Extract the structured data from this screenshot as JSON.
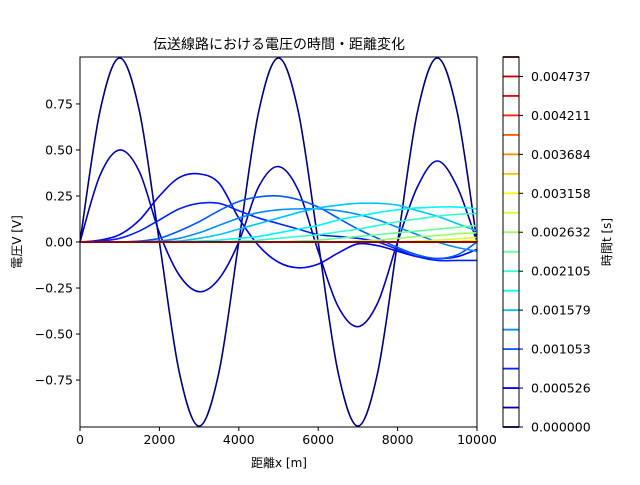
{
  "chart_data": {
    "type": "line",
    "title": "伝送線路における電圧の時間・距離変化",
    "xlabel": "距離x [m]",
    "ylabel": "電圧V [V]",
    "xlim": [
      0,
      10000
    ],
    "ylim": [
      -1.005,
      1.005
    ],
    "xticks": [
      0,
      2000,
      4000,
      6000,
      8000,
      10000
    ],
    "yticks": [
      -0.75,
      -0.5,
      -0.25,
      0.0,
      0.25,
      0.5,
      0.75
    ],
    "ytick_labels": [
      "−0.75",
      "−0.50",
      "−0.25",
      "0.00",
      "0.25",
      "0.50",
      "0.75"
    ],
    "grid": false,
    "colormap": "jet",
    "colorbar": {
      "label": "時間t [s]",
      "range": [
        0,
        0.005
      ],
      "levels": 20,
      "tick_labels": [
        "0.000000",
        "0.000526",
        "0.001053",
        "0.001579",
        "0.002105",
        "0.002632",
        "0.003158",
        "0.003684",
        "0.004211",
        "0.004737"
      ]
    },
    "x": [
      0,
      500,
      1000,
      1500,
      2000,
      2500,
      3000,
      3500,
      4000,
      4500,
      5000,
      5500,
      6000,
      6500,
      7000,
      7500,
      8000,
      8500,
      9000,
      9500,
      10000
    ],
    "series": [
      {
        "t": 0.0,
        "y": [
          0,
          0.707,
          1,
          0.707,
          0,
          -0.707,
          -1,
          -0.707,
          0,
          0.707,
          1,
          0.707,
          0,
          -0.707,
          -1,
          -0.707,
          0,
          0.707,
          1,
          0.707,
          0
        ]
      },
      {
        "t": 0.000263,
        "y": [
          0,
          0.36,
          0.5,
          0.38,
          0.05,
          -0.18,
          -0.27,
          -0.2,
          0.0,
          0.3,
          0.41,
          0.28,
          -0.05,
          -0.35,
          -0.46,
          -0.33,
          0.0,
          0.3,
          0.44,
          0.3,
          0.0
        ]
      },
      {
        "t": 0.000526,
        "y": [
          0,
          0.01,
          0.04,
          0.12,
          0.25,
          0.35,
          0.37,
          0.32,
          0.13,
          -0.02,
          -0.11,
          -0.14,
          -0.12,
          -0.06,
          -0.01,
          -0.02,
          -0.05,
          -0.08,
          -0.09,
          -0.08,
          -0.04
        ]
      },
      {
        "t": 0.000789,
        "y": [
          0,
          0.005,
          0.02,
          0.06,
          0.12,
          0.18,
          0.21,
          0.21,
          0.17,
          0.13,
          0.1,
          0.07,
          0.04,
          0.03,
          0.02,
          0.0,
          -0.04,
          -0.08,
          -0.1,
          -0.1,
          -0.1
        ]
      },
      {
        "t": 0.001053,
        "y": [
          0,
          0,
          0,
          0.005,
          0.02,
          0.06,
          0.11,
          0.17,
          0.22,
          0.245,
          0.25,
          0.23,
          0.19,
          0.13,
          0.07,
          0.02,
          -0.03,
          -0.07,
          -0.09,
          -0.07,
          0.0
        ]
      },
      {
        "t": 0.001316,
        "y": [
          0,
          0,
          0,
          0,
          0.005,
          0.02,
          0.05,
          0.09,
          0.13,
          0.16,
          0.175,
          0.18,
          0.18,
          0.17,
          0.15,
          0.12,
          0.08,
          0.04,
          0.0,
          -0.03,
          -0.05
        ]
      },
      {
        "t": 0.001579,
        "y": [
          0,
          0,
          0,
          0,
          0,
          0.005,
          0.02,
          0.04,
          0.07,
          0.1,
          0.13,
          0.16,
          0.185,
          0.2,
          0.21,
          0.21,
          0.2,
          0.17,
          0.14,
          0.1,
          0.06
        ]
      },
      {
        "t": 0.001842,
        "y": [
          0,
          0,
          0,
          0,
          0,
          0,
          0.005,
          0.01,
          0.02,
          0.03,
          0.05,
          0.07,
          0.09,
          0.12,
          0.14,
          0.16,
          0.175,
          0.185,
          0.19,
          0.19,
          0.18
        ]
      },
      {
        "t": 0.002105,
        "y": [
          0,
          0,
          0,
          0,
          0,
          0,
          0,
          0,
          0.005,
          0.01,
          0.02,
          0.03,
          0.04,
          0.055,
          0.07,
          0.09,
          0.11,
          0.125,
          0.14,
          0.15,
          0.155
        ]
      },
      {
        "t": 0.002368,
        "y": [
          0,
          0,
          0,
          0,
          0,
          0,
          0,
          0,
          0,
          0,
          0,
          0.005,
          0.01,
          0.02,
          0.03,
          0.04,
          0.05,
          0.06,
          0.07,
          0.08,
          0.09
        ]
      },
      {
        "t": 0.002632,
        "y": [
          0,
          0,
          0,
          0,
          0,
          0,
          0,
          0,
          0,
          0,
          0,
          0,
          0,
          0,
          0.005,
          0.01,
          0.02,
          0.03,
          0.035,
          0.045,
          0.05
        ]
      },
      {
        "t": 0.002895,
        "y": [
          0,
          0,
          0,
          0,
          0,
          0,
          0,
          0,
          0,
          0,
          0,
          0,
          0,
          0,
          0,
          0,
          0,
          0.005,
          0.01,
          0.017,
          0.025
        ]
      },
      {
        "t": 0.003158,
        "y": [
          0,
          0,
          0,
          0,
          0,
          0,
          0,
          0,
          0,
          0,
          0,
          0,
          0,
          0,
          0,
          0,
          0,
          0,
          0,
          0.004,
          0.01
        ]
      },
      {
        "t": 0.003421,
        "y": [
          0,
          0,
          0,
          0,
          0,
          0,
          0,
          0,
          0,
          0,
          0,
          0,
          0,
          0,
          0,
          0,
          0,
          0,
          0,
          0,
          0.003
        ]
      },
      {
        "t": 0.003684,
        "y": [
          0,
          0,
          0,
          0,
          0,
          0,
          0,
          0,
          0,
          0,
          0,
          0,
          0,
          0,
          0,
          0,
          0,
          0,
          0,
          0,
          0
        ]
      },
      {
        "t": 0.003947,
        "y": [
          0,
          0,
          0,
          0,
          0,
          0,
          0,
          0,
          0,
          0,
          0,
          0,
          0,
          0,
          0,
          0,
          0,
          0,
          0,
          0,
          0
        ]
      },
      {
        "t": 0.004211,
        "y": [
          0,
          0,
          0,
          0,
          0,
          0,
          0,
          0,
          0,
          0,
          0,
          0,
          0,
          0,
          0,
          0,
          0,
          0,
          0,
          0,
          0
        ]
      },
      {
        "t": 0.004474,
        "y": [
          0,
          0,
          0,
          0,
          0,
          0,
          0,
          0,
          0,
          0,
          0,
          0,
          0,
          0,
          0,
          0,
          0,
          0,
          0,
          0,
          0
        ]
      },
      {
        "t": 0.004737,
        "y": [
          0,
          0,
          0,
          0,
          0,
          0,
          0,
          0,
          0,
          0,
          0,
          0,
          0,
          0,
          0,
          0,
          0,
          0,
          0,
          0,
          0
        ]
      },
      {
        "t": 0.005,
        "y": [
          0,
          0,
          0,
          0,
          0,
          0,
          0,
          0,
          0,
          0,
          0,
          0,
          0,
          0,
          0,
          0,
          0,
          0,
          0,
          0,
          0
        ]
      }
    ]
  }
}
